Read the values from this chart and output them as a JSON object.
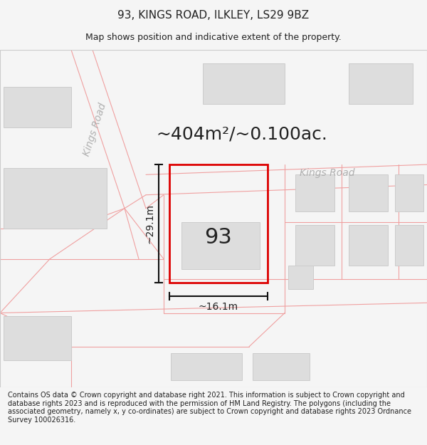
{
  "title": "93, KINGS ROAD, ILKLEY, LS29 9BZ",
  "subtitle": "Map shows position and indicative extent of the property.",
  "area_label": "~404m²/~0.100ac.",
  "property_number": "93",
  "dim_width": "~16.1m",
  "dim_height": "~29.1m",
  "road_label_diagonal": "Kings Road",
  "road_label_horizontal": "Kings Road",
  "footer_text": "Contains OS data © Crown copyright and database right 2021. This information is subject to Crown copyright and database rights 2023 and is reproduced with the permission of HM Land Registry. The polygons (including the associated geometry, namely x, y co-ordinates) are subject to Crown copyright and database rights 2023 Ordnance Survey 100026316.",
  "bg_color": "#f5f5f5",
  "map_bg": "#ffffff",
  "road_line_color": "#f0a0a0",
  "building_color": "#dddddd",
  "building_edge": "#cccccc",
  "property_edge": "#dd0000",
  "dim_line_color": "#111111",
  "text_color_dark": "#222222",
  "text_color_road": "#b0b0b0",
  "footer_fontsize": 7.0,
  "title_fontsize": 11,
  "subtitle_fontsize": 9,
  "area_fontsize": 18,
  "number_fontsize": 22,
  "dim_fontsize": 10,
  "road_label_fontsize": 10
}
